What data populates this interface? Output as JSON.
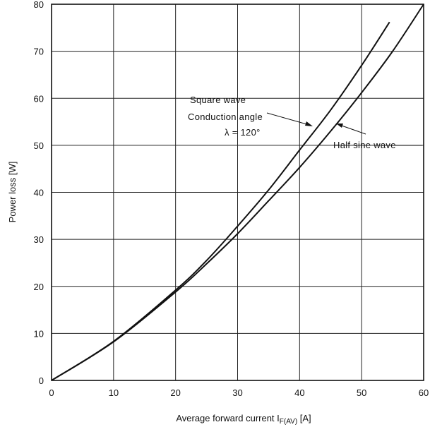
{
  "chart_data": {
    "type": "line",
    "title": "",
    "xlabel": "Average forward current I",
    "xlabel_sub": "F(AV)",
    "xlabel_unit": " [A]",
    "ylabel": "Power loss [W]",
    "xlim": [
      0,
      60
    ],
    "ylim": [
      0,
      80
    ],
    "x_ticks": [
      0,
      10,
      20,
      30,
      40,
      50,
      60
    ],
    "y_ticks": [
      0,
      10,
      20,
      30,
      40,
      50,
      60,
      70,
      80
    ],
    "grid": true,
    "series": [
      {
        "name": "Square wave",
        "x": [
          0,
          10,
          20,
          25,
          30,
          35,
          40,
          45,
          50,
          54.5
        ],
        "y": [
          0,
          8.3,
          19.2,
          25.5,
          32.8,
          40.5,
          49.0,
          57.5,
          67.0,
          76.2
        ]
      },
      {
        "name": "Half sine wave",
        "x": [
          0,
          10,
          20,
          25,
          30,
          35,
          40,
          45,
          50,
          55,
          60
        ],
        "y": [
          0,
          8.2,
          18.8,
          24.8,
          31.2,
          38.2,
          45.3,
          53.0,
          61.2,
          70.0,
          80.0
        ]
      }
    ],
    "annotations": {
      "square_wave": "Square wave",
      "conduction_angle": "Conduction angle",
      "lambda": "λ = 120°",
      "half_sine": "Half sine wave"
    }
  }
}
